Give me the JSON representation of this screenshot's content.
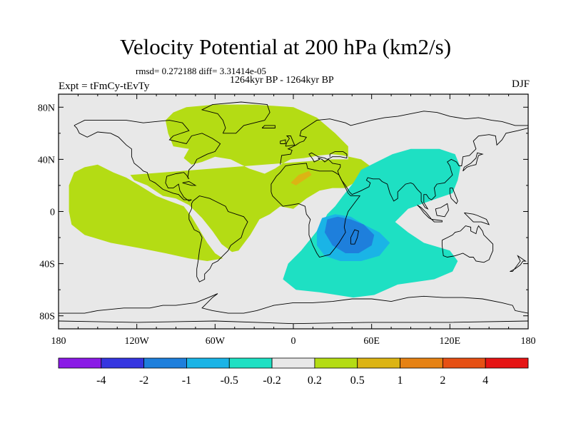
{
  "header": {
    "title": "Velocity Potential at 200 hPa (km2/s)",
    "stats": "rmsd= 0.272188 diff= 3.31414e-05",
    "period": "1264kyr BP - 1264kyr BP",
    "experiment": "Expt = tFmCy-tEvTy",
    "season": "DJF"
  },
  "chart_data": {
    "type": "heatmap",
    "projection": "cylindrical-equidistant",
    "title": "Velocity Potential at 200 hPa (km2/s)",
    "xlim": [
      -180,
      180
    ],
    "ylim": [
      -90,
      90
    ],
    "x_ticks": [
      {
        "value": -180,
        "label": "180"
      },
      {
        "value": -120,
        "label": "120W"
      },
      {
        "value": -60,
        "label": "60W"
      },
      {
        "value": 0,
        "label": "0"
      },
      {
        "value": 60,
        "label": "60E"
      },
      {
        "value": 120,
        "label": "120E"
      },
      {
        "value": 180,
        "label": "180"
      }
    ],
    "y_ticks": [
      {
        "value": 80,
        "label": "80N"
      },
      {
        "value": 40,
        "label": "40N"
      },
      {
        "value": 0,
        "label": "0"
      },
      {
        "value": -40,
        "label": "40S"
      },
      {
        "value": -80,
        "label": "80S"
      }
    ],
    "colorbar": {
      "colors": [
        "#8a1ae6",
        "#3535e0",
        "#1e7fdc",
        "#1ab4e6",
        "#1ee0c3",
        "#e8e8e8",
        "#b4dc14",
        "#dcb414",
        "#e68214",
        "#e65014",
        "#e61414"
      ],
      "levels": [
        -4,
        -2,
        -1,
        -0.5,
        -0.2,
        0.2,
        0.5,
        1,
        2,
        4
      ],
      "labels": [
        "-4",
        "-2",
        "-1",
        "-0.5",
        "-0.2",
        "0.2",
        "0.5",
        "1",
        "2",
        "4"
      ]
    },
    "regions": [
      {
        "level": "0.2 to 0.5",
        "color": "#b4dc14",
        "outline": [
          [
            -125,
            28
          ],
          [
            -122,
            24
          ],
          [
            -112,
            20
          ],
          [
            -100,
            12
          ],
          [
            -90,
            10
          ],
          [
            -80,
            5
          ],
          [
            -70,
            -5
          ],
          [
            -62,
            -15
          ],
          [
            -55,
            -25
          ],
          [
            -47,
            -31
          ],
          [
            -42,
            -30
          ],
          [
            -33,
            -18
          ],
          [
            -26,
            -6
          ],
          [
            -18,
            -2
          ],
          [
            -10,
            4
          ],
          [
            0,
            2
          ],
          [
            10,
            10
          ],
          [
            20,
            16
          ],
          [
            30,
            18
          ],
          [
            40,
            18
          ],
          [
            50,
            24
          ],
          [
            60,
            34
          ],
          [
            52,
            40
          ],
          [
            38,
            43
          ],
          [
            30,
            44
          ],
          [
            20,
            43
          ],
          [
            8,
            41
          ],
          [
            -2,
            40
          ],
          [
            -8,
            37
          ],
          [
            -14,
            33
          ],
          [
            -22,
            29
          ],
          [
            -34,
            33
          ],
          [
            -48,
            40
          ],
          [
            -60,
            42
          ],
          [
            -70,
            38
          ],
          [
            -78,
            36
          ],
          [
            -84,
            41
          ],
          [
            -80,
            48
          ],
          [
            -92,
            50
          ],
          [
            -96,
            60
          ],
          [
            -98,
            70
          ],
          [
            -92,
            76
          ],
          [
            -82,
            80
          ],
          [
            -60,
            82
          ],
          [
            -30,
            82
          ],
          [
            0,
            80
          ],
          [
            18,
            72
          ],
          [
            32,
            60
          ],
          [
            42,
            50
          ],
          [
            42,
            40
          ],
          [
            30,
            40
          ]
        ]
      },
      {
        "level": "0.2 to 0.5",
        "color": "#b4dc14",
        "outline": [
          [
            -172,
            20
          ],
          [
            -168,
            30
          ],
          [
            -160,
            34
          ],
          [
            -150,
            36
          ],
          [
            -138,
            30
          ],
          [
            -128,
            26
          ],
          [
            -118,
            20
          ],
          [
            -105,
            12
          ],
          [
            -95,
            8
          ],
          [
            -84,
            4
          ],
          [
            -78,
            -4
          ],
          [
            -72,
            -14
          ],
          [
            -66,
            -24
          ],
          [
            -60,
            -32
          ],
          [
            -54,
            -36
          ],
          [
            -66,
            -38
          ],
          [
            -80,
            -36
          ],
          [
            -98,
            -32
          ],
          [
            -118,
            -28
          ],
          [
            -140,
            -24
          ],
          [
            -160,
            -18
          ],
          [
            -170,
            -10
          ],
          [
            -172,
            0
          ]
        ]
      },
      {
        "level": "-0.5 to -0.2",
        "color": "#1ee0c3",
        "outline": [
          [
            22,
            -10
          ],
          [
            14,
            -20
          ],
          [
            6,
            -30
          ],
          [
            -4,
            -40
          ],
          [
            -8,
            -52
          ],
          [
            2,
            -60
          ],
          [
            20,
            -62
          ],
          [
            46,
            -66
          ],
          [
            62,
            -64
          ],
          [
            80,
            -56
          ],
          [
            108,
            -52
          ],
          [
            122,
            -46
          ],
          [
            126,
            -38
          ],
          [
            120,
            -30
          ],
          [
            100,
            -24
          ],
          [
            88,
            -16
          ],
          [
            78,
            -8
          ],
          [
            88,
            2
          ],
          [
            110,
            10
          ],
          [
            122,
            14
          ],
          [
            126,
            24
          ],
          [
            128,
            34
          ],
          [
            124,
            44
          ],
          [
            112,
            48
          ],
          [
            90,
            48
          ],
          [
            76,
            44
          ],
          [
            64,
            38
          ],
          [
            52,
            32
          ],
          [
            46,
            22
          ],
          [
            38,
            12
          ],
          [
            32,
            4
          ],
          [
            26,
            -2
          ]
        ]
      },
      {
        "level": "-1 to -0.5",
        "color": "#1ab4e6",
        "outline": [
          [
            22,
            -5
          ],
          [
            18,
            -15
          ],
          [
            18,
            -26
          ],
          [
            24,
            -34
          ],
          [
            36,
            -38
          ],
          [
            52,
            -38
          ],
          [
            66,
            -34
          ],
          [
            74,
            -24
          ],
          [
            66,
            -16
          ],
          [
            54,
            -10
          ],
          [
            44,
            -4
          ],
          [
            32,
            -2
          ]
        ]
      },
      {
        "level": "-2 to -1",
        "color": "#1e7fdc",
        "outline": [
          [
            26,
            -6
          ],
          [
            24,
            -16
          ],
          [
            30,
            -26
          ],
          [
            40,
            -32
          ],
          [
            50,
            -32
          ],
          [
            60,
            -26
          ],
          [
            62,
            -18
          ],
          [
            54,
            -10
          ],
          [
            44,
            -6
          ],
          [
            34,
            -4
          ]
        ]
      },
      {
        "level": "0.5 to 1",
        "color": "#dcb414",
        "outline": [
          [
            -2,
            22
          ],
          [
            4,
            28
          ],
          [
            12,
            31
          ],
          [
            14,
            28
          ],
          [
            8,
            24
          ],
          [
            2,
            20
          ]
        ]
      }
    ]
  }
}
